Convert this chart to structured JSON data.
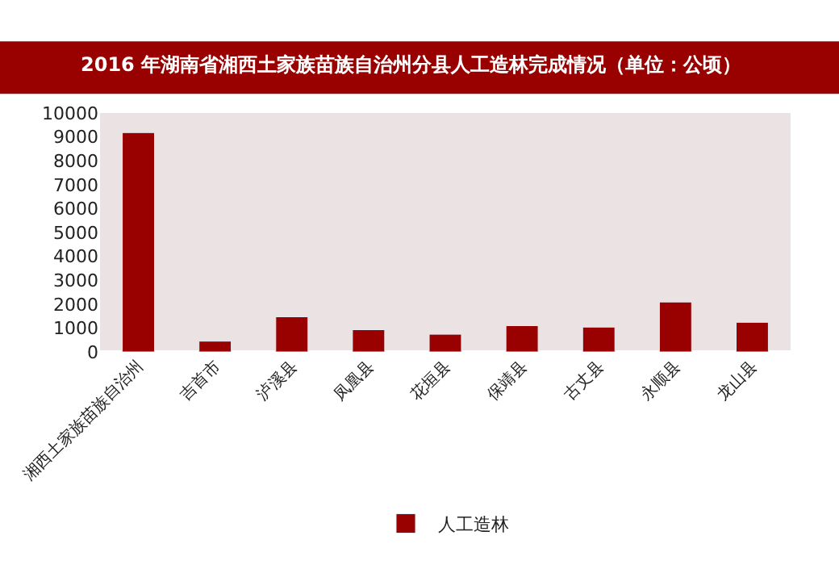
{
  "chart_data": {
    "type": "bar",
    "title": "2016 年湖南省湘西土家族苗族自治州分县人工造林完成情况（单位：公顷）",
    "categories": [
      "湘西土家族苗族自治州",
      "吉首市",
      "泸溪县",
      "凤凰县",
      "花垣县",
      "保靖县",
      "古丈县",
      "永顺县",
      "龙山县"
    ],
    "series": [
      {
        "name": "人工造林",
        "color": "#990000",
        "values": [
          9180,
          450,
          1470,
          930,
          740,
          1100,
          1040,
          2090,
          1240
        ]
      }
    ],
    "ylim": [
      0,
      10000
    ],
    "yticks": [
      0,
      1000,
      2000,
      3000,
      4000,
      5000,
      6000,
      7000,
      8000,
      9000,
      10000
    ],
    "grid": false,
    "legend": "bottom"
  }
}
